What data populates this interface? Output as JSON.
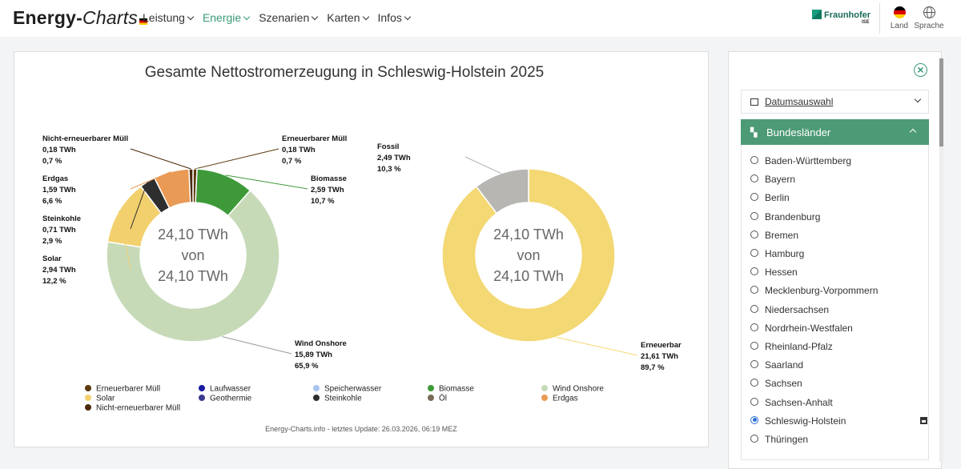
{
  "header": {
    "logo_bold": "Energy-",
    "logo_italic": "Charts",
    "nav": [
      {
        "label": "Leistung",
        "active": false
      },
      {
        "label": "Energie",
        "active": true
      },
      {
        "label": "Szenarien",
        "active": false
      },
      {
        "label": "Karten",
        "active": false
      },
      {
        "label": "Infos",
        "active": false
      }
    ],
    "partner": "Fraunhofer",
    "partner_sub": "ISE",
    "country_label": "Land",
    "language_label": "Sprache"
  },
  "chart_data": {
    "type": "pie",
    "title": "Gesamte Nettostromerzeugung in Schleswig-Holstein 2025",
    "center_text": [
      "24,10 TWh",
      "von",
      "24,10 TWh"
    ],
    "unit": "TWh",
    "total": 24.1,
    "donuts": [
      {
        "name": "Energieträger",
        "slices": [
          {
            "label": "Erneuerbarer Müll",
            "value": 0.18,
            "percent": 0.7,
            "value_text": "0,18 TWh",
            "percent_text": "0,7 %",
            "color": "#5b3a0e"
          },
          {
            "label": "Biomasse",
            "value": 2.59,
            "percent": 10.7,
            "value_text": "2,59 TWh",
            "percent_text": "10,7 %",
            "color": "#3e9a39"
          },
          {
            "label": "Wind Onshore",
            "value": 15.89,
            "percent": 65.9,
            "value_text": "15,89 TWh",
            "percent_text": "65,9 %",
            "color": "#c7dab8"
          },
          {
            "label": "Solar",
            "value": 2.94,
            "percent": 12.2,
            "value_text": "2,94 TWh",
            "percent_text": "12,2 %",
            "color": "#f2d06d"
          },
          {
            "label": "Steinkohle",
            "value": 0.71,
            "percent": 2.9,
            "value_text": "0,71 TWh",
            "percent_text": "2,9 %",
            "color": "#2e2e2e"
          },
          {
            "label": "Erdgas",
            "value": 1.59,
            "percent": 6.6,
            "value_text": "1,59 TWh",
            "percent_text": "6,6 %",
            "color": "#e99a55"
          },
          {
            "label": "Nicht-erneuerbarer Müll",
            "value": 0.18,
            "percent": 0.7,
            "value_text": "0,18 TWh",
            "percent_text": "0,7 %",
            "color": "#4a2a0a"
          }
        ]
      },
      {
        "name": "Erneuerbar / Fossil",
        "slices": [
          {
            "label": "Erneuerbar",
            "value": 21.61,
            "percent": 89.7,
            "value_text": "21,61 TWh",
            "percent_text": "89,7 %",
            "color": "#f3d873"
          },
          {
            "label": "Fossil",
            "value": 2.49,
            "percent": 10.3,
            "value_text": "2,49 TWh",
            "percent_text": "10,3 %",
            "color": "#b8b6b3"
          }
        ]
      }
    ],
    "legend": [
      {
        "label": "Erneuerbarer Müll",
        "color": "#5b3a0e"
      },
      {
        "label": "Laufwasser",
        "color": "#1a1aa0"
      },
      {
        "label": "Speicherwasser",
        "color": "#a8c4f0"
      },
      {
        "label": "Biomasse",
        "color": "#3e9a39"
      },
      {
        "label": "Wind Onshore",
        "color": "#c7dab8"
      },
      {
        "label": "Solar",
        "color": "#f2d06d"
      },
      {
        "label": "Geothermie",
        "color": "#3b3b8f"
      },
      {
        "label": "Steinkohle",
        "color": "#2e2e2e"
      },
      {
        "label": "Öl",
        "color": "#7a6a58"
      },
      {
        "label": "Erdgas",
        "color": "#e99a55"
      },
      {
        "label": "Nicht-erneuerbarer Müll",
        "color": "#4a2a0a"
      }
    ],
    "credit": "Energy-Charts.info - letztes Update: 26.03.2026, 06:19 MEZ"
  },
  "sidebar": {
    "date_label": "Datumsauswahl",
    "states_header": "Bundesländer",
    "states": [
      {
        "label": "Baden-Württemberg",
        "selected": false
      },
      {
        "label": "Bayern",
        "selected": false
      },
      {
        "label": "Berlin",
        "selected": false
      },
      {
        "label": "Brandenburg",
        "selected": false
      },
      {
        "label": "Bremen",
        "selected": false
      },
      {
        "label": "Hamburg",
        "selected": false
      },
      {
        "label": "Hessen",
        "selected": false
      },
      {
        "label": "Mecklenburg-Vorpommern",
        "selected": false
      },
      {
        "label": "Niedersachsen",
        "selected": false
      },
      {
        "label": "Nordrhein-Westfalen",
        "selected": false
      },
      {
        "label": "Rheinland-Pfalz",
        "selected": false
      },
      {
        "label": "Saarland",
        "selected": false
      },
      {
        "label": "Sachsen",
        "selected": false
      },
      {
        "label": "Sachsen-Anhalt",
        "selected": false
      },
      {
        "label": "Schleswig-Holstein",
        "selected": true
      },
      {
        "label": "Thüringen",
        "selected": false
      }
    ]
  }
}
